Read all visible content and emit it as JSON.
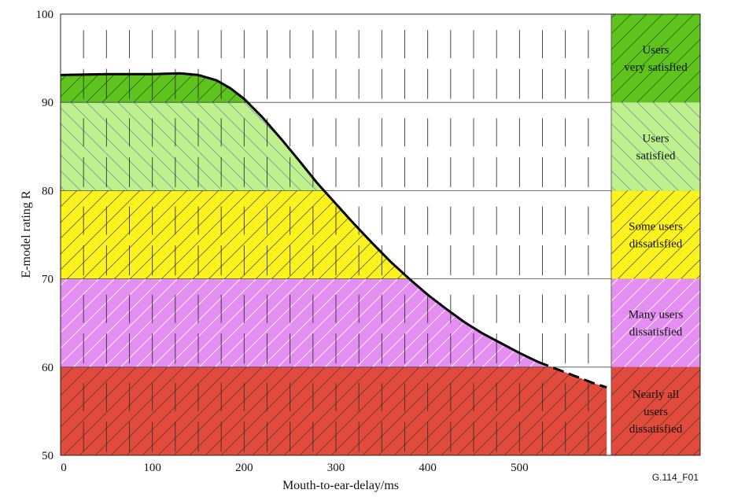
{
  "chart_data": {
    "type": "line",
    "xlabel": "Mouth-to-ear-delay/ms",
    "ylabel": "E-model rating R",
    "xlim": [
      0,
      600
    ],
    "ylim": [
      50,
      100
    ],
    "x_ticks": [
      "0",
      "100",
      "200",
      "300",
      "400",
      "500"
    ],
    "y_ticks": [
      "50",
      "60",
      "70",
      "80",
      "90",
      "100"
    ],
    "grid": "horizontal lines at band boundaries",
    "figure_code": "G.114_F01",
    "bands": [
      {
        "min": 90,
        "max": 100,
        "label": [
          "Users",
          "very satisfied"
        ],
        "color": "#5cc41a"
      },
      {
        "min": 80,
        "max": 90,
        "label": [
          "Users",
          "satisfied"
        ],
        "color": "#bef08c"
      },
      {
        "min": 70,
        "max": 80,
        "label": [
          "Some users",
          "dissatisfied"
        ],
        "color": "#fbf21e"
      },
      {
        "min": 60,
        "max": 70,
        "label": [
          "Many users",
          "dissatisfied"
        ],
        "color": "#e38ef0"
      },
      {
        "min": 50,
        "max": 60,
        "label": [
          "Nearly all",
          "users",
          "dissatisfied"
        ],
        "color": "#e24a3c"
      }
    ],
    "series": [
      {
        "style": "solid",
        "x": [
          0,
          50,
          100,
          130,
          150,
          170,
          185,
          200,
          220,
          240,
          260,
          280,
          300,
          320,
          340,
          360,
          380,
          400,
          420,
          440,
          460,
          480,
          500,
          520
        ],
        "y": [
          93.1,
          93.2,
          93.2,
          93.3,
          93.1,
          92.5,
          91.6,
          90.4,
          88.3,
          85.9,
          83.4,
          80.8,
          78.5,
          76.2,
          74.0,
          71.9,
          70.0,
          68.2,
          66.6,
          65.1,
          63.8,
          62.7,
          61.6,
          60.6
        ]
      },
      {
        "style": "dashed",
        "x": [
          520,
          540,
          560,
          580,
          595
        ],
        "y": [
          60.6,
          59.8,
          59.0,
          58.2,
          57.7
        ]
      }
    ]
  }
}
